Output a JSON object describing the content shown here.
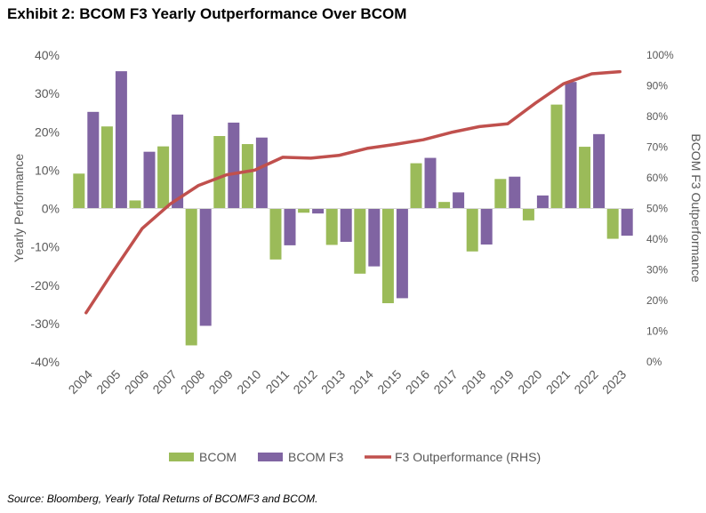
{
  "title": "Exhibit 2: BCOM F3 Yearly Outperformance Over BCOM",
  "source": "Source: Bloomberg, Yearly Total Returns of BCOMF3 and BCOM.",
  "chart_data": {
    "type": "bar",
    "categories": [
      "2004",
      "2005",
      "2006",
      "2007",
      "2008",
      "2009",
      "2010",
      "2011",
      "2012",
      "2013",
      "2014",
      "2015",
      "2016",
      "2017",
      "2018",
      "2019",
      "2020",
      "2021",
      "2022",
      "2023"
    ],
    "series": [
      {
        "name": "BCOM",
        "type": "bar",
        "axis": "left",
        "color": "#9BBB59",
        "values": [
          9.1,
          21.4,
          2.1,
          16.2,
          -35.7,
          18.9,
          16.8,
          -13.3,
          -1.1,
          -9.5,
          -17.0,
          -24.7,
          11.8,
          1.7,
          -11.2,
          7.7,
          -3.1,
          27.1,
          16.1,
          -7.9
        ]
      },
      {
        "name": "BCOM F3",
        "type": "bar",
        "axis": "left",
        "color": "#8064A2",
        "values": [
          25.2,
          35.8,
          14.8,
          24.5,
          -30.6,
          22.4,
          18.5,
          -9.6,
          -1.3,
          -8.7,
          -15.1,
          -23.4,
          13.2,
          4.2,
          -9.4,
          8.3,
          3.4,
          33.0,
          19.4,
          -7.1
        ]
      },
      {
        "name": "F3 Outperformance (RHS)",
        "type": "line",
        "axis": "right",
        "color": "#C0504D",
        "values": [
          16.0,
          30.0,
          43.5,
          51.5,
          57.5,
          61.0,
          62.5,
          66.7,
          66.4,
          67.3,
          69.6,
          70.9,
          72.4,
          74.8,
          76.7,
          77.6,
          84.4,
          90.7,
          93.9,
          94.6
        ]
      }
    ],
    "ylabel": "Yearly Performance",
    "ylabel_right": "BCOM F3 Outperformance",
    "ylim": [
      -40,
      40
    ],
    "ylim_right": [
      0,
      100
    ],
    "yticks": [
      "-40%",
      "-30%",
      "-20%",
      "-10%",
      "0%",
      "10%",
      "20%",
      "30%",
      "40%"
    ],
    "yticks_right": [
      "0%",
      "10%",
      "20%",
      "30%",
      "40%",
      "50%",
      "60%",
      "70%",
      "80%",
      "90%",
      "100%"
    ],
    "legend": [
      "BCOM",
      "BCOM F3",
      "F3 Outperformance (RHS)"
    ],
    "legend_position": "bottom"
  }
}
